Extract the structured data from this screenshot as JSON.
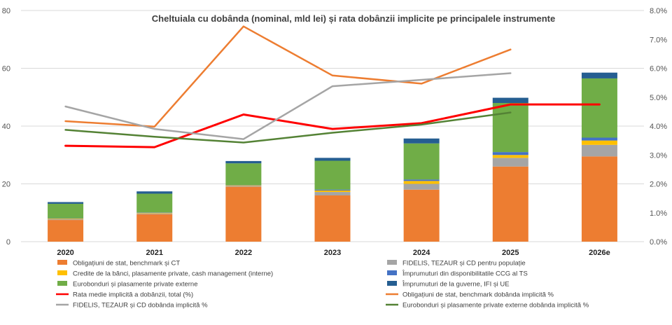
{
  "chart_data": {
    "type": "bar",
    "title": "Cheltuiala cu dobânda (nominal, mld lei) și rata dobânzii implicite pe principalele instrumente",
    "categories": [
      "2020",
      "2021",
      "2022",
      "2023",
      "2024",
      "2025",
      "2026e"
    ],
    "left_axis": {
      "ylim": [
        0,
        80
      ],
      "ticks": [
        "0",
        "20",
        "40",
        "60",
        "80"
      ]
    },
    "right_axis": {
      "ylim": [
        0,
        8
      ],
      "ticks": [
        "0.0%",
        "1.0%",
        "2.0%",
        "3.0%",
        "4.0%",
        "5.0%",
        "6.0%",
        "7.0%",
        "8.0%"
      ]
    },
    "grid": true,
    "legend_position": "bottom",
    "bar_series": [
      {
        "name": "Obligațiuni de stat, benchmark și CT",
        "color": "#ED7D31",
        "values": [
          7.5,
          9.5,
          19,
          16,
          18,
          26,
          29.5
        ]
      },
      {
        "name": "FIDELIS, TEZAUR și CD pentru populație",
        "color": "#A5A5A5",
        "values": [
          0.3,
          0.3,
          0.3,
          1.2,
          2,
          3,
          4
        ]
      },
      {
        "name": "Credite de la bănci, plasamente private, cash management (interne)",
        "color": "#FFC000",
        "values": [
          0.2,
          0.2,
          0.2,
          0.5,
          1,
          1,
          1.5
        ]
      },
      {
        "name": "Împrumuturi din disponibilitatile CCG al TS",
        "color": "#4472C4",
        "values": [
          0.1,
          0.1,
          0.1,
          0.3,
          0.5,
          1,
          1
        ]
      },
      {
        "name": "Eurobonduri și plasamente private externe",
        "color": "#70AD47",
        "values": [
          5,
          6.5,
          7.5,
          10,
          12.5,
          17,
          20.5
        ]
      },
      {
        "name": "Împrumuturi de la guverne, IFI și UE",
        "color": "#255E91",
        "values": [
          0.6,
          0.8,
          0.8,
          1,
          1.7,
          1.8,
          2
        ]
      }
    ],
    "line_series": [
      {
        "name": "Rata medie implicită a dobânzii, total (%)",
        "color": "#FF0000",
        "width": 3,
        "values": [
          3.32,
          3.27,
          4.4,
          3.9,
          4.1,
          4.75,
          4.75
        ]
      },
      {
        "name": "Obligațiuni de stat, benchmark dobânda implicită %",
        "color": "#ED7D31",
        "width": 2.5,
        "values": [
          4.17,
          3.98,
          7.45,
          5.75,
          5.47,
          6.65,
          null
        ]
      },
      {
        "name": "FIDELIS, TEZAUR și CD dobânda implicită %",
        "color": "#A5A5A5",
        "width": 2.5,
        "values": [
          4.68,
          3.9,
          3.55,
          5.38,
          5.6,
          5.83,
          null
        ]
      },
      {
        "name": "Eurobonduri și plasamente private externe dobânda implicită %",
        "color": "#548235",
        "width": 2.5,
        "values": [
          3.87,
          3.63,
          3.43,
          3.77,
          4.05,
          4.47,
          null
        ]
      }
    ],
    "legend": [
      {
        "label": "Obligațiuni de stat, benchmark și CT",
        "kind": "bar",
        "color": "#ED7D31"
      },
      {
        "label": "FIDELIS, TEZAUR și CD pentru populație",
        "kind": "bar",
        "color": "#A5A5A5"
      },
      {
        "label": "Credite de la bănci, plasamente private, cash management (interne)",
        "kind": "bar",
        "color": "#FFC000"
      },
      {
        "label": "Împrumuturi din disponibilitatile CCG al TS",
        "kind": "bar",
        "color": "#4472C4"
      },
      {
        "label": "Eurobonduri și plasamente private externe",
        "kind": "bar",
        "color": "#70AD47"
      },
      {
        "label": "Împrumuturi de la guverne, IFI și UE",
        "kind": "bar",
        "color": "#255E91"
      },
      {
        "label": "Rata medie implicită a dobânzii, total (%)",
        "kind": "line",
        "color": "#FF0000"
      },
      {
        "label": "Obligațiuni de stat, benchmark dobânda implicită %",
        "kind": "line",
        "color": "#ED7D31"
      },
      {
        "label": "FIDELIS, TEZAUR și CD dobânda implicită %",
        "kind": "line",
        "color": "#A5A5A5"
      },
      {
        "label": "Eurobonduri și plasamente private externe dobânda implicită %",
        "kind": "line",
        "color": "#548235"
      }
    ]
  }
}
